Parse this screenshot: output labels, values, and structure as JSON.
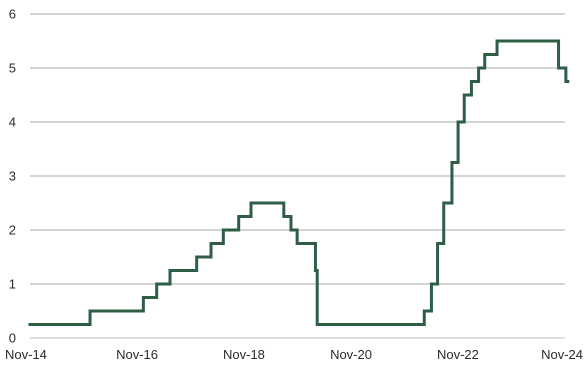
{
  "chart_data": {
    "type": "line",
    "title": "",
    "xlabel": "",
    "ylabel": "",
    "x_range": [
      "2014-11-01",
      "2024-11-01"
    ],
    "ylim": [
      0,
      6
    ],
    "grid": true,
    "legend": "none",
    "line_color": "#2e5e46",
    "grid_color": "#a9a9a9",
    "x_tick_labels": [
      "Nov-14",
      "Nov-16",
      "Nov-18",
      "Nov-20",
      "Nov-22",
      "Nov-24"
    ],
    "y_tick_labels": [
      "0",
      "1",
      "2",
      "3",
      "4",
      "5",
      "6"
    ],
    "series": [
      {
        "style": "step",
        "points": [
          {
            "x": "2014-11-01",
            "y": 0.25
          },
          {
            "x": "2015-12-16",
            "y": 0.5
          },
          {
            "x": "2016-12-14",
            "y": 0.75
          },
          {
            "x": "2017-03-15",
            "y": 1.0
          },
          {
            "x": "2017-06-14",
            "y": 1.25
          },
          {
            "x": "2017-12-13",
            "y": 1.5
          },
          {
            "x": "2018-03-21",
            "y": 1.75
          },
          {
            "x": "2018-06-13",
            "y": 2.0
          },
          {
            "x": "2018-09-26",
            "y": 2.25
          },
          {
            "x": "2018-12-19",
            "y": 2.5
          },
          {
            "x": "2019-07-31",
            "y": 2.25
          },
          {
            "x": "2019-09-18",
            "y": 2.0
          },
          {
            "x": "2019-10-30",
            "y": 1.75
          },
          {
            "x": "2020-03-03",
            "y": 1.25
          },
          {
            "x": "2020-03-15",
            "y": 0.25
          },
          {
            "x": "2022-03-16",
            "y": 0.5
          },
          {
            "x": "2022-05-04",
            "y": 1.0
          },
          {
            "x": "2022-06-15",
            "y": 1.75
          },
          {
            "x": "2022-07-27",
            "y": 2.5
          },
          {
            "x": "2022-09-21",
            "y": 3.25
          },
          {
            "x": "2022-11-02",
            "y": 4.0
          },
          {
            "x": "2022-12-14",
            "y": 4.5
          },
          {
            "x": "2023-02-01",
            "y": 4.75
          },
          {
            "x": "2023-03-22",
            "y": 5.0
          },
          {
            "x": "2023-05-03",
            "y": 5.25
          },
          {
            "x": "2023-07-26",
            "y": 5.5
          },
          {
            "x": "2024-09-18",
            "y": 5.0
          },
          {
            "x": "2024-11-07",
            "y": 4.75
          },
          {
            "x": "2024-11-20",
            "y": 4.75
          }
        ]
      }
    ]
  }
}
